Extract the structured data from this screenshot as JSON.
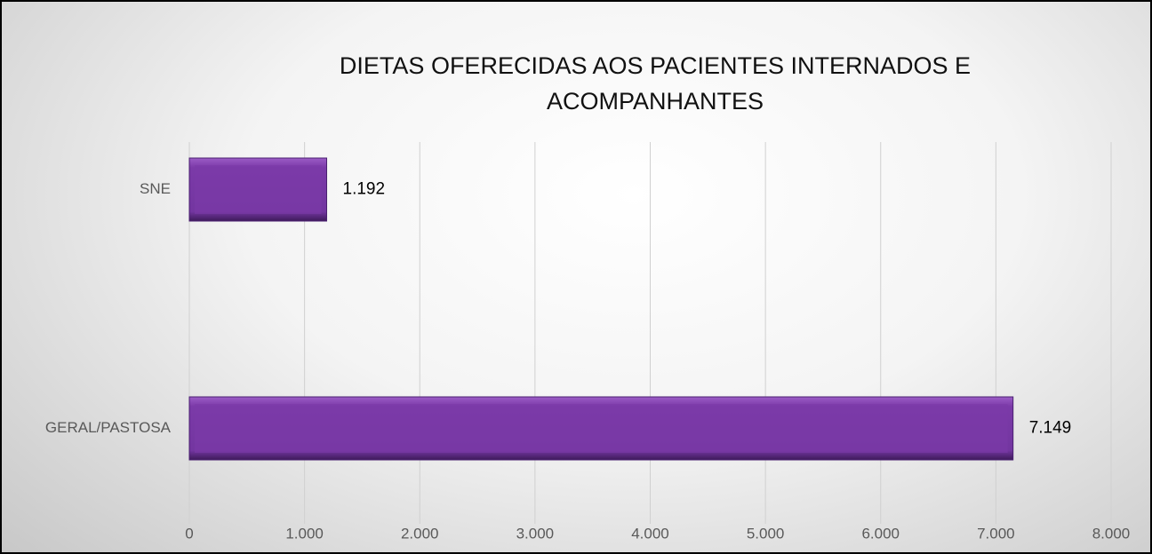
{
  "chart_data": {
    "type": "bar",
    "orientation": "horizontal",
    "title": "DIETAS OFERECIDAS AOS PACIENTES INTERNADOS E ACOMPANHANTES",
    "categories": [
      "SNE",
      "GERAL/PASTOSA"
    ],
    "values": [
      1192,
      7149
    ],
    "value_labels": [
      "1.192",
      "7.149"
    ],
    "color": "#7b3aa8",
    "xlim": [
      0,
      8000
    ],
    "xticks": [
      0,
      {
        "value": 1000,
        "label": "1.000"
      },
      {
        "value": 2000,
        "label": "2.000"
      },
      {
        "value": 3000,
        "label": "3.000"
      },
      {
        "value": 4000,
        "label": "4.000"
      },
      {
        "value": 5000,
        "label": "5.000"
      },
      {
        "value": 6000,
        "label": "6.000"
      },
      {
        "value": 7000,
        "label": "7.000"
      },
      {
        "value": 8000,
        "label": "8.000"
      }
    ],
    "grid": true
  }
}
